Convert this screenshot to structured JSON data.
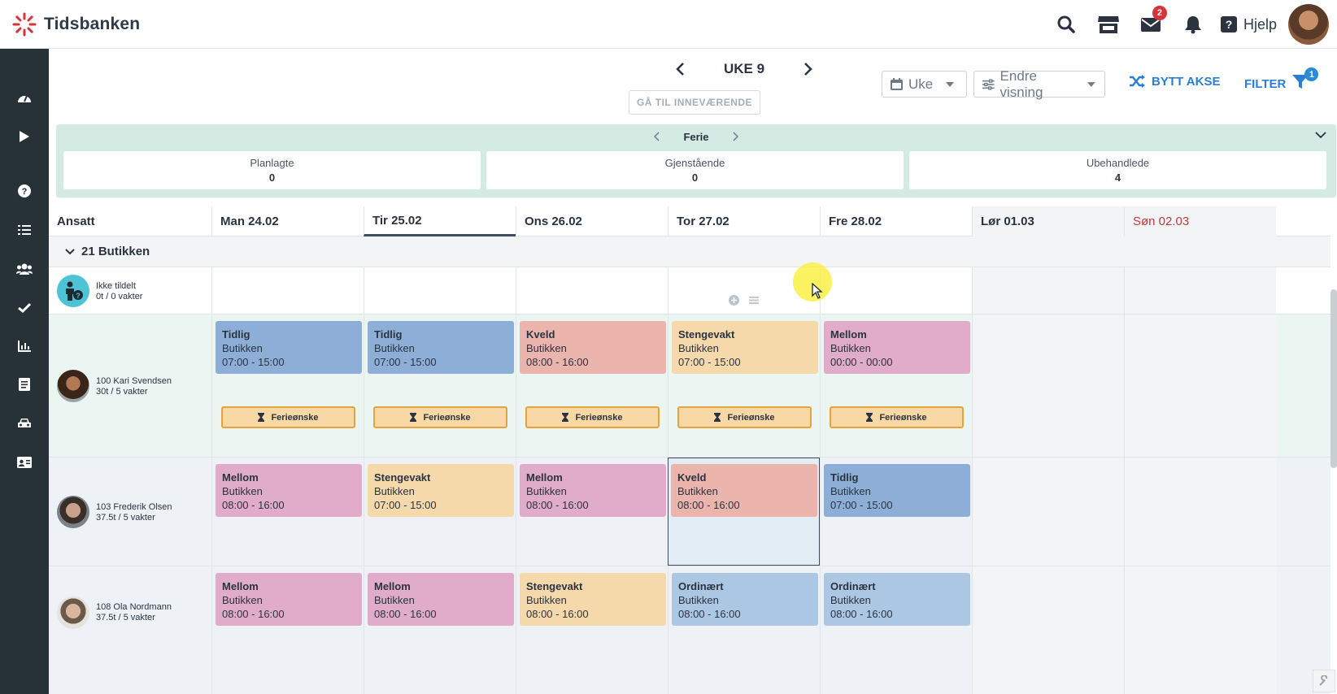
{
  "app": {
    "logo_text": "Tidsbanken",
    "help_label": "Hjelp",
    "mail_badge": "2"
  },
  "toolbar": {
    "week_label": "UKE 9",
    "goto_current": "GÅ TIL INNEVÆRENDE",
    "view_select": "Uke",
    "change_view": "Endre visning",
    "swap_axis": "BYTT AKSE",
    "filter": "FILTER",
    "filter_badge": "1"
  },
  "vacation": {
    "title": "Ferie",
    "planned_label": "Planlagte",
    "planned_value": "0",
    "remaining_label": "Gjenstående",
    "remaining_value": "0",
    "unprocessed_label": "Ubehandlede",
    "unprocessed_value": "4"
  },
  "grid": {
    "employee_header": "Ansatt",
    "days": [
      "Man 24.02",
      "Tir 25.02",
      "Ons 26.02",
      "Tor 27.02",
      "Fre 28.02",
      "Lør 01.03",
      "Søn 02.03"
    ],
    "group_label": "21 Butikken",
    "unassigned": {
      "name": "Ikke tildelt",
      "sub": "0t / 0 vakter"
    },
    "employees": [
      {
        "name": "100 Kari Svendsen",
        "sub": "30t / 5 vakter",
        "shifts": [
          {
            "title": "Tidlig",
            "dept": "Butikken",
            "time": "07:00 - 15:00"
          },
          {
            "title": "Tidlig",
            "dept": "Butikken",
            "time": "07:00 - 15:00"
          },
          {
            "title": "Kveld",
            "dept": "Butikken",
            "time": "08:00 - 16:00"
          },
          {
            "title": "Stengevakt",
            "dept": "Butikken",
            "time": "07:00 - 15:00"
          },
          {
            "title": "Mellom",
            "dept": "Butikken",
            "time": "00:00 - 00:00"
          }
        ],
        "vacation_request_label": "Ferieønske"
      },
      {
        "name": "103 Frederik Olsen",
        "sub": "37.5t / 5 vakter",
        "shifts": [
          {
            "title": "Mellom",
            "dept": "Butikken",
            "time": "08:00 - 16:00"
          },
          {
            "title": "Stengevakt",
            "dept": "Butikken",
            "time": "07:00 - 15:00"
          },
          {
            "title": "Mellom",
            "dept": "Butikken",
            "time": "08:00 - 16:00"
          },
          {
            "title": "Kveld",
            "dept": "Butikken",
            "time": "08:00 - 16:00"
          },
          {
            "title": "Tidlig",
            "dept": "Butikken",
            "time": "07:00 - 15:00"
          }
        ]
      },
      {
        "name": "108 Ola Nordmann",
        "sub": "37.5t / 5 vakter",
        "shifts": [
          {
            "title": "Mellom",
            "dept": "Butikken",
            "time": "08:00 - 16:00"
          },
          {
            "title": "Mellom",
            "dept": "Butikken",
            "time": "08:00 - 16:00"
          },
          {
            "title": "Stengevakt",
            "dept": "Butikken",
            "time": "08:00 - 16:00"
          },
          {
            "title": "Ordinært",
            "dept": "Butikken",
            "time": "08:00 - 16:00"
          },
          {
            "title": "Ordinært",
            "dept": "Butikken",
            "time": "08:00 - 16:00"
          }
        ]
      }
    ]
  },
  "colors": {
    "sidebar": "#263238",
    "accent": "#2a7fd4",
    "brand_red": "#d5333a",
    "vacation_panel": "#d4ebe3",
    "shift_tidlig": "#8dafd7",
    "shift_ordinaert": "#acc7e3",
    "shift_kveld": "#ebb5ae",
    "shift_mellom": "#e0acc9",
    "shift_stengevakt": "#f6d9ab"
  },
  "icons": {
    "top": [
      "search-icon",
      "store-icon",
      "mail-icon",
      "bell-icon",
      "help-icon"
    ],
    "sidebar": [
      "dashboard-icon",
      "play-icon",
      "help-circle-icon",
      "list-icon",
      "users-icon",
      "check-icon",
      "chart-icon",
      "document-icon",
      "car-icon",
      "id-card-icon"
    ]
  }
}
